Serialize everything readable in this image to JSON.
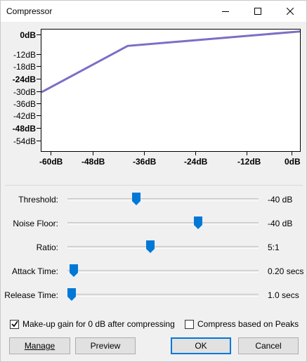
{
  "window": {
    "title": "Compressor"
  },
  "titlebar": {
    "minimize_icon": "minimize-icon",
    "maximize_icon": "maximize-icon",
    "close_icon": "close-icon"
  },
  "graph": {
    "y_ticks": [
      "0dB",
      "-12dB",
      "-18dB",
      "-24dB",
      "-30dB",
      "-36dB",
      "-42dB",
      "-48dB",
      "-54dB"
    ],
    "x_ticks": [
      "-60dB",
      "-48dB",
      "-36dB",
      "-24dB",
      "-12dB",
      "0dB"
    ],
    "curve_color": "#7b6fc5",
    "curve_points": [
      [
        -60,
        -29.5
      ],
      [
        -40,
        -5.5
      ],
      [
        0,
        2
      ]
    ]
  },
  "controls": {
    "threshold": {
      "label": "Threshold:",
      "value": "-40 dB",
      "level": 0.34
    },
    "noise_floor": {
      "label": "Noise Floor:",
      "value": "-40 dB",
      "level": 0.66
    },
    "ratio": {
      "label": "Ratio:",
      "value": "5:1",
      "level": 0.41
    },
    "attack": {
      "label": "Attack Time:",
      "value": "0.20 secs",
      "level": 0.01
    },
    "release": {
      "label": "Release Time:",
      "value": "1.0 secs",
      "level": 0.0
    }
  },
  "options": {
    "makeup": {
      "label": "Make-up gain for 0 dB after compressing",
      "checked": true
    },
    "peaks": {
      "label": "Compress based on Peaks",
      "checked": false
    }
  },
  "buttons": {
    "manage": "Manage",
    "preview": "Preview",
    "ok": "OK",
    "cancel": "Cancel"
  },
  "colors": {
    "accent": "#0078d7",
    "thumb": "#0078d7"
  }
}
